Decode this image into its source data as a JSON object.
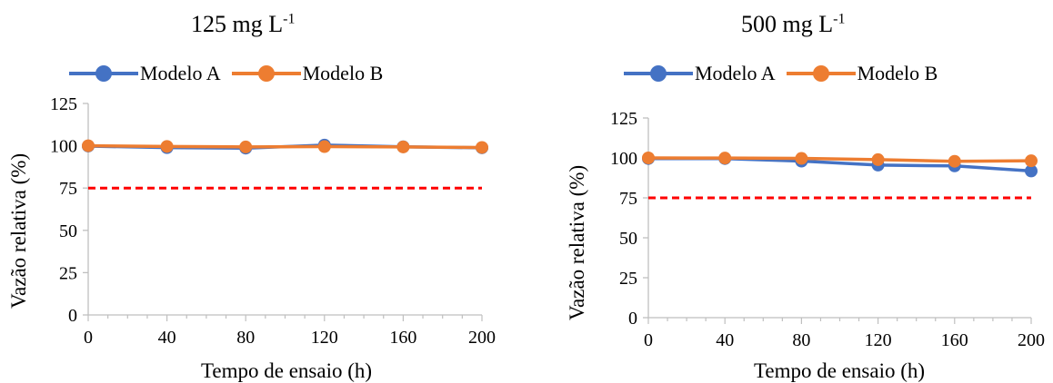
{
  "chart_data": [
    {
      "type": "line",
      "title": "125 mg L",
      "title_sup": "-1",
      "xlabel": "Tempo de ensaio (h)",
      "ylabel": "Vazão relativa (%)",
      "x": [
        0,
        40,
        80,
        120,
        160,
        200
      ],
      "xticks": [
        "0",
        "40",
        "80",
        "120",
        "160",
        "200"
      ],
      "yticks": [
        "0",
        "25",
        "50",
        "75",
        "100",
        "125"
      ],
      "xlim": [
        0,
        200
      ],
      "ylim": [
        0,
        125
      ],
      "grid": false,
      "legend_position": "top",
      "series": [
        {
          "name": "Modelo A",
          "color": "#4472C4",
          "values": [
            99.8,
            98.9,
            98.6,
            100.4,
            99.4,
            98.8
          ]
        },
        {
          "name": "Modelo B",
          "color": "#ED7D31",
          "values": [
            100.0,
            99.6,
            99.3,
            99.5,
            99.3,
            99.0
          ]
        }
      ],
      "reference_line": {
        "y": 75,
        "color": "#FF0000",
        "style": "dashed"
      }
    },
    {
      "type": "line",
      "title": "500 mg L",
      "title_sup": "-1",
      "xlabel": "Tempo de ensaio (h)",
      "ylabel": "Vazão relativa (%)",
      "x": [
        0,
        40,
        80,
        120,
        160,
        200
      ],
      "xticks": [
        "0",
        "40",
        "80",
        "120",
        "160",
        "200"
      ],
      "yticks": [
        "0",
        "25",
        "50",
        "75",
        "100",
        "125"
      ],
      "xlim": [
        0,
        200
      ],
      "ylim": [
        0,
        125
      ],
      "grid": false,
      "legend_position": "top",
      "series": [
        {
          "name": "Modelo A",
          "color": "#4472C4",
          "values": [
            99.6,
            99.6,
            98.0,
            95.5,
            95.0,
            91.8
          ]
        },
        {
          "name": "Modelo B",
          "color": "#ED7D31",
          "values": [
            100.0,
            99.9,
            99.7,
            98.9,
            97.9,
            98.2
          ]
        }
      ],
      "reference_line": {
        "y": 75,
        "color": "#FF0000",
        "style": "dashed"
      }
    }
  ]
}
